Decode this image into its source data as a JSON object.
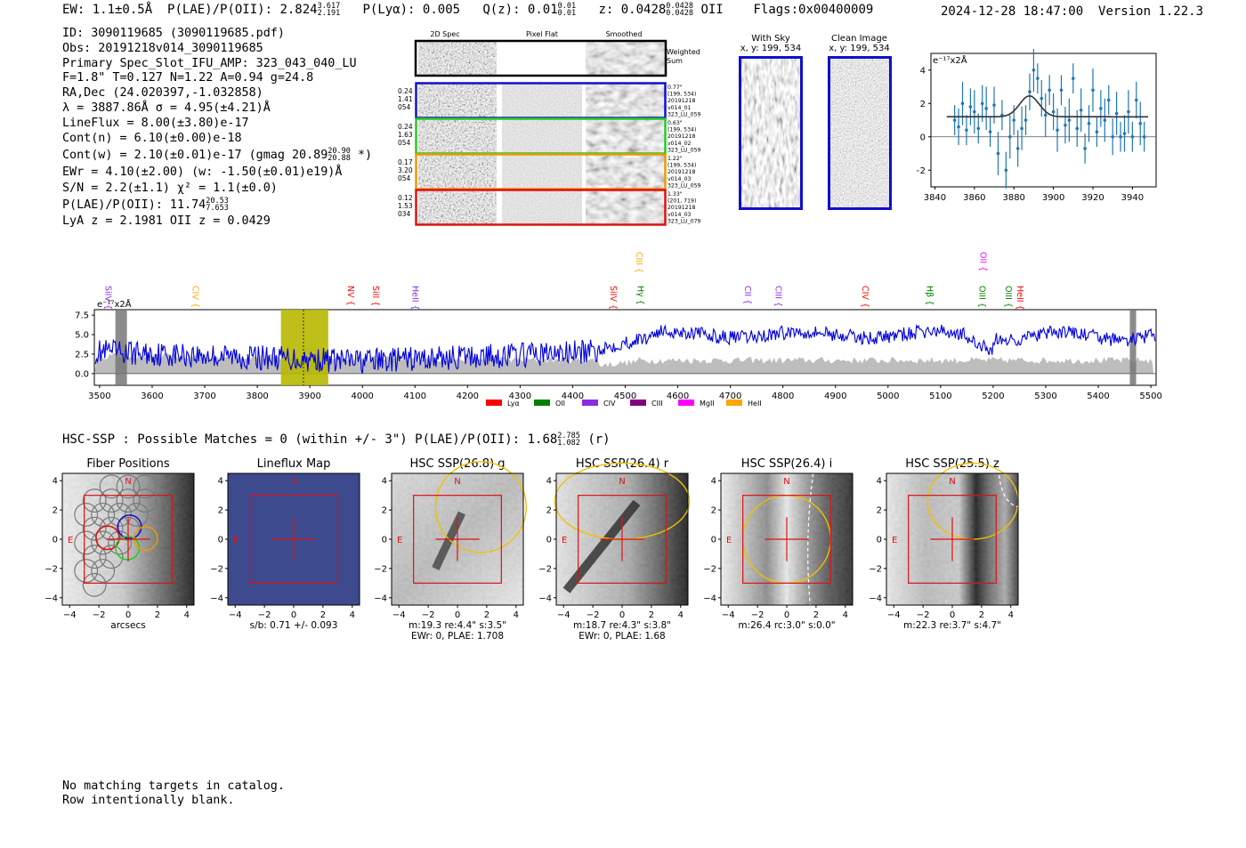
{
  "header": {
    "ew": "EW: 1.1±0.5Å",
    "plae_label": "P(LAE)/P(OII): 2.824",
    "plae_hi": "3.617",
    "plae_lo": "2.191",
    "plya": "P(Lyα): 0.005",
    "qz_label": "Q(z): 0.01",
    "qz_hi": "0.01",
    "qz_lo": "0.01",
    "z_label": "z: 0.0428",
    "z_hi": "0.0428",
    "z_lo": "0.0428",
    "z_line": "OII",
    "flags": "Flags:0x00400009",
    "timestamp": "2024-12-28 18:47:00",
    "version": "Version 1.22.3"
  },
  "info": {
    "id": "ID: 3090119685 (3090119685.pdf)",
    "obs": "Obs: 20191218v014_3090119685",
    "primary": "Primary Spec_Slot_IFU_AMP: 323_043_040_LU",
    "fparams": "F=1.8\"  T=0.127  N=1.22  A=0.94  g=24.8",
    "radec": "RA,Dec (24.020397,-1.032858)",
    "lambda": "λ = 3887.86Å  σ = 4.95(±4.21)Å",
    "lineflux": "LineFlux = 8.00(±3.80)e-17",
    "contn": "Cont(n) = 6.10(±0.00)e-18",
    "contw": "Cont(w) = 2.10(±0.01)e-17 (gmag 20.89",
    "contw_hi": "20.90",
    "contw_lo": "20.88",
    "contw_end": "*)",
    "ewr": "EWr = 4.10(±2.00) (w: -1.50(±0.01)e19)Å",
    "sn": "S/N = 2.2(±1.1)  χ² = 1.1(±0.0)",
    "plae": "P(LAE)/P(OII): 11.74",
    "plae_hi": "20.53",
    "plae_lo": "7.653",
    "lya": "LyA z = 2.1981  OII z = 0.0429"
  },
  "cutouts": {
    "col_2d": "2D Spec",
    "col_flat": "Pixel Flat",
    "col_smooth": "Smoothed",
    "weighted": "Weighted",
    "sum": "Sum",
    "rows": [
      {
        "l1": "0.24",
        "l2": "1.41",
        "l3": "054",
        "r1": "0.77\"",
        "r2": "(199, 534)",
        "r3": "20191218",
        "r4": "v014_01",
        "r5": "323_LU_059",
        "color": "#1010cc"
      },
      {
        "l1": "0.24",
        "l2": "1.63",
        "l3": "054",
        "r1": "0.63\"",
        "r2": "(199, 534)",
        "r3": "20191218",
        "r4": "v014_02",
        "r5": "323_LU_059",
        "color": "#22cc22"
      },
      {
        "l1": "0.17",
        "l2": "3.20",
        "l3": "054",
        "r1": "1.22\"",
        "r2": "(199, 534)",
        "r3": "20191218",
        "r4": "v014_03",
        "r5": "323_LU_059",
        "color": "#ee9900"
      },
      {
        "l1": "0.12",
        "l2": "1.53",
        "l3": "034",
        "r1": "1.33\"",
        "r2": "(201, 719)",
        "r3": "20191218",
        "r4": "v014_03",
        "r5": "323_LU_079",
        "color": "#dd1111"
      }
    ]
  },
  "sky": {
    "with_sky_title": "With Sky",
    "with_sky_xy": "x, y: 199, 534",
    "clean_title": "Clean Image",
    "clean_xy": "x, y: 199, 534"
  },
  "zoom_plot": {
    "unit": "e⁻¹⁷x2Å",
    "xticks": [
      "3840",
      "3860",
      "3880",
      "3900",
      "3920",
      "3940"
    ],
    "yticks": [
      "4",
      "2",
      "0",
      "−2"
    ]
  },
  "chart_data": [
    {
      "type": "scatter",
      "xlim": [
        3838,
        3952
      ],
      "ylim": [
        -3.0,
        5.0
      ],
      "x": [
        3850,
        3852,
        3854,
        3856,
        3858,
        3860,
        3862,
        3864,
        3866,
        3868,
        3870,
        3872,
        3874,
        3876,
        3878,
        3880,
        3882,
        3884,
        3886,
        3888,
        3890,
        3892,
        3894,
        3896,
        3898,
        3900,
        3902,
        3904,
        3906,
        3908,
        3910,
        3912,
        3914,
        3916,
        3918,
        3920,
        3922,
        3924,
        3926,
        3928,
        3930,
        3932,
        3934,
        3936,
        3938,
        3940,
        3942,
        3944,
        3946
      ],
      "y": [
        1.0,
        0.6,
        2.0,
        0.4,
        1.8,
        1.5,
        0.5,
        2.0,
        1.7,
        0.3,
        1.9,
        -1.0,
        1.3,
        -2.0,
        0.0,
        1.0,
        -0.7,
        0.5,
        1.0,
        2.7,
        4.0,
        3.5,
        2.3,
        1.3,
        2.8,
        1.5,
        0.4,
        2.8,
        0.7,
        1.0,
        3.5,
        0.5,
        1.6,
        -0.7,
        0.8,
        2.8,
        0.3,
        1.7,
        1.0,
        2.2,
        0.0,
        1.4,
        0.0,
        0.2,
        1.5,
        0.0,
        2.2,
        0.8,
        0.0
      ],
      "fit": {
        "continuum": 1.2,
        "amplitude": 1.25,
        "center": 3887.86,
        "sigma": 4.95
      }
    },
    {
      "type": "line",
      "xlim": [
        3490,
        5510
      ],
      "ylim": [
        -1.5,
        8.2
      ],
      "xticks": [
        "3500",
        "3600",
        "3700",
        "3800",
        "3900",
        "4000",
        "4100",
        "4200",
        "4300",
        "4400",
        "4500",
        "4600",
        "4700",
        "4800",
        "4900",
        "5000",
        "5100",
        "5200",
        "5300",
        "5400",
        "5500"
      ],
      "yticks": [
        "7.5",
        "5.0",
        "2.5",
        "0.0"
      ],
      "unit": "e⁻¹⁷x2Å",
      "highlight": [
        3845,
        3935
      ],
      "line_center": 3887.86,
      "sky_masks": [
        [
          3530,
          3552
        ],
        [
          5460,
          5472
        ]
      ],
      "lines": [
        {
          "name": "SiIV",
          "x": 3505,
          "color": "#8a2be2",
          "row": 1
        },
        {
          "name": "CIV",
          "x": 3671,
          "color": "#ffa500",
          "row": 1
        },
        {
          "name": "NV",
          "x": 3967,
          "color": "#ff0000",
          "row": 1
        },
        {
          "name": "SiII",
          "x": 4014,
          "color": "#ff0000",
          "row": 1
        },
        {
          "name": "HeII",
          "x": 4089,
          "color": "#8a2be2",
          "row": 1
        },
        {
          "name": "SiIV",
          "x": 4466,
          "color": "#ff0000",
          "row": 1
        },
        {
          "name": "CIII",
          "x": 4515,
          "color": "#ffa500",
          "row": 0
        },
        {
          "name": "Hγ",
          "x": 4518,
          "color": "#008000",
          "row": 1
        },
        {
          "name": "CII",
          "x": 4722,
          "color": "#8a2be2",
          "row": 1
        },
        {
          "name": "CIII",
          "x": 4780,
          "color": "#8a2be2",
          "row": 1
        },
        {
          "name": "CIV",
          "x": 4945,
          "color": "#ff0000",
          "row": 1
        },
        {
          "name": "Hβ",
          "x": 5068,
          "color": "#008000",
          "row": 1
        },
        {
          "name": "OII",
          "x": 5170,
          "color": "#ff00ff",
          "row": 0
        },
        {
          "name": "OIII",
          "x": 5168,
          "color": "#008000",
          "row": 1
        },
        {
          "name": "OIII",
          "x": 5218,
          "color": "#008000",
          "row": 1
        },
        {
          "name": "HeII",
          "x": 5240,
          "color": "#ff0000",
          "row": 1
        }
      ],
      "legend": [
        {
          "name": "Lyα",
          "color": "#ff0000"
        },
        {
          "name": "OII",
          "color": "#008000"
        },
        {
          "name": "CIV",
          "color": "#8a2be2"
        },
        {
          "name": "CIII",
          "color": "#800080"
        },
        {
          "name": "MgII",
          "color": "#ff00ff"
        },
        {
          "name": "HeII",
          "color": "#ffa500"
        }
      ]
    }
  ],
  "hsc": {
    "summary": "HSC-SSP : Possible Matches = 0 (within +/- 3\")  P(LAE)/P(OII): 1.68",
    "summary_hi": "2.785",
    "summary_lo": "1.082",
    "summary_band": "(r)",
    "north": "N",
    "east": "E",
    "xticks": [
      "−4",
      "−2",
      "0",
      "2",
      "4"
    ],
    "yticks": [
      "4",
      "2",
      "0",
      "−2",
      "−4"
    ],
    "panels": [
      {
        "title": "Fiber Positions",
        "cap1": "arcsecs",
        "cap2": ""
      },
      {
        "title": "Lineflux Map",
        "cap1": "s/b: 0.71 +/- 0.093",
        "cap2": ""
      },
      {
        "title": "HSC SSP(26.8) g",
        "cap1": "m:19.3  re:4.4\"  s:3.5\"",
        "cap2": "EWr: 0, PLAE: 1.708"
      },
      {
        "title": "HSC SSP(26.4) r",
        "cap1": "m:18.7  re:4.3\"  s:3.8\"",
        "cap2": "EWr: 0, PLAE: 1.68"
      },
      {
        "title": "HSC SSP(26.4) i",
        "cap1": "m:26.4 rc:3.0\"  s:0.0\"",
        "cap2": ""
      },
      {
        "title": "HSC SSP(25.5) z",
        "cap1": "m:22.3  re:3.7\"  s:4.7\"",
        "cap2": ""
      }
    ]
  },
  "footer": {
    "line1": "No matching targets in catalog.",
    "line2": "Row intentionally blank."
  }
}
